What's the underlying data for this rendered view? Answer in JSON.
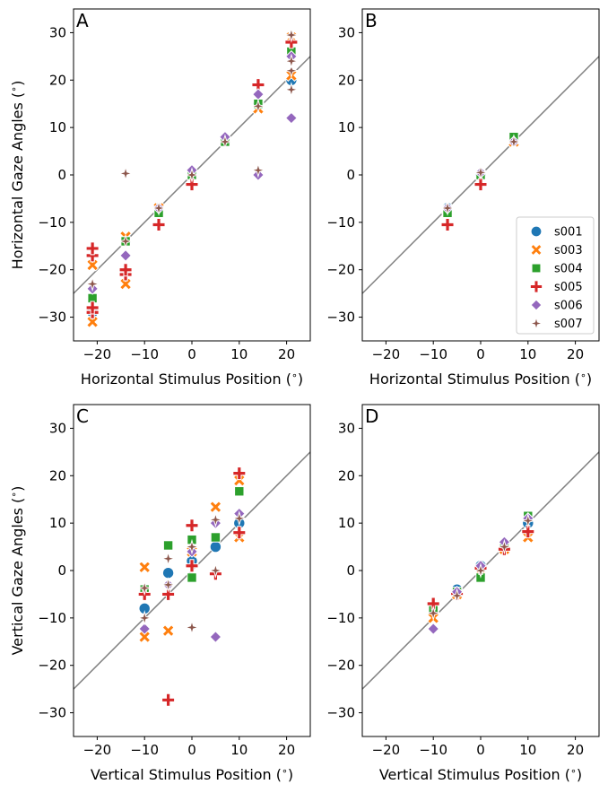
{
  "figure": {
    "ylabel_top": "Horizontal Gaze Angles ($^\\circ$)",
    "ylabel_bottom": "Vertical Gaze Angles ($^\\circ$)"
  },
  "chart_data": [
    {
      "panel": "A",
      "type": "scatter",
      "xlabel": "Horizontal Stimulus Position ($^\\circ$)",
      "ylabel": "Horizontal Gaze Angles ($^\\circ$)",
      "xlim": [
        -25,
        25
      ],
      "ylim": [
        -35,
        35
      ],
      "xticks": [
        -20,
        -10,
        0,
        10,
        20
      ],
      "yticks": [
        -30,
        -20,
        -10,
        0,
        10,
        20,
        30
      ],
      "identity_line": true,
      "legend": "none",
      "series": [
        {
          "name": "s001",
          "points": [
            [
              -21,
              -29
            ],
            [
              -14,
              -14
            ],
            [
              -7,
              -7
            ],
            [
              0,
              0
            ],
            [
              7,
              7
            ],
            [
              14,
              15
            ],
            [
              21,
              20
            ]
          ]
        },
        {
          "name": "s003",
          "points": [
            [
              -21,
              -31
            ],
            [
              -21,
              -19
            ],
            [
              -14,
              -23
            ],
            [
              -14,
              -13
            ],
            [
              -7,
              -7
            ],
            [
              0,
              0
            ],
            [
              7,
              7
            ],
            [
              14,
              14
            ],
            [
              21,
              21
            ],
            [
              21,
              29
            ]
          ]
        },
        {
          "name": "s004",
          "points": [
            [
              -21,
              -26
            ],
            [
              -14,
              -14
            ],
            [
              -7,
              -8
            ],
            [
              0,
              0
            ],
            [
              7,
              7
            ],
            [
              14,
              15
            ],
            [
              21,
              26
            ]
          ]
        },
        {
          "name": "s005",
          "points": [
            [
              -21,
              -29
            ],
            [
              -21,
              -28
            ],
            [
              -21,
              -17
            ],
            [
              -21,
              -15.5
            ],
            [
              -14,
              -21
            ],
            [
              -14,
              -20
            ],
            [
              -7,
              -10.5
            ],
            [
              0,
              -2
            ],
            [
              14,
              19
            ],
            [
              21,
              28
            ]
          ]
        },
        {
          "name": "s006",
          "points": [
            [
              -21,
              -24
            ],
            [
              -14,
              -17
            ],
            [
              -7,
              -7
            ],
            [
              0,
              1
            ],
            [
              7,
              8
            ],
            [
              14,
              17
            ],
            [
              14,
              0
            ],
            [
              21,
              12
            ],
            [
              21,
              25
            ]
          ]
        },
        {
          "name": "s007",
          "points": [
            [
              -21,
              -23
            ],
            [
              -14,
              0.3
            ],
            [
              -14,
              -14
            ],
            [
              -7,
              -7
            ],
            [
              0,
              0
            ],
            [
              7,
              7
            ],
            [
              14,
              14.5
            ],
            [
              14,
              1
            ],
            [
              21,
              18
            ],
            [
              21,
              22
            ],
            [
              21,
              24
            ],
            [
              21,
              29.5
            ]
          ]
        }
      ]
    },
    {
      "panel": "B",
      "type": "scatter",
      "xlabel": "Horizontal Stimulus Position ($^\\circ$)",
      "ylabel": "",
      "xlim": [
        -25,
        25
      ],
      "ylim": [
        -35,
        35
      ],
      "xticks": [
        -20,
        -10,
        0,
        10,
        20
      ],
      "yticks": [
        -30,
        -20,
        -10,
        0,
        10,
        20,
        30
      ],
      "identity_line": true,
      "legend": "lower-right",
      "series": [
        {
          "name": "s001",
          "points": [
            [
              -7,
              -7
            ],
            [
              0,
              0
            ],
            [
              7,
              7.5
            ]
          ]
        },
        {
          "name": "s003",
          "points": [
            [
              -7,
              -7.5
            ],
            [
              0,
              0
            ],
            [
              7,
              7
            ]
          ]
        },
        {
          "name": "s004",
          "points": [
            [
              -7,
              -8
            ],
            [
              0,
              0
            ],
            [
              7,
              8
            ]
          ]
        },
        {
          "name": "s005",
          "points": [
            [
              -7,
              -10.5
            ],
            [
              0,
              -2
            ]
          ]
        },
        {
          "name": "s006",
          "points": [
            [
              -7,
              -7
            ],
            [
              0,
              0.5
            ],
            [
              7,
              7
            ]
          ]
        },
        {
          "name": "s007",
          "points": [
            [
              -7,
              -7
            ],
            [
              0,
              0.5
            ],
            [
              7,
              7
            ]
          ]
        }
      ]
    },
    {
      "panel": "C",
      "type": "scatter",
      "xlabel": "Vertical Stimulus Position ($^\\circ$)",
      "ylabel": "Vertical Gaze Angles ($^\\circ$)",
      "xlim": [
        -25,
        25
      ],
      "ylim": [
        -35,
        35
      ],
      "xticks": [
        -20,
        -10,
        0,
        10,
        20
      ],
      "yticks": [
        -30,
        -20,
        -10,
        0,
        10,
        20,
        30
      ],
      "identity_line": true,
      "legend": "none",
      "series": [
        {
          "name": "s001",
          "points": [
            [
              -10,
              -8
            ],
            [
              -5,
              -0.5
            ],
            [
              0,
              2
            ],
            [
              5,
              5
            ],
            [
              10,
              10
            ]
          ]
        },
        {
          "name": "s003",
          "points": [
            [
              -10,
              0.7
            ],
            [
              -10,
              -14
            ],
            [
              -5,
              -12.7
            ],
            [
              0,
              4
            ],
            [
              5,
              13.4
            ],
            [
              10,
              19
            ],
            [
              10,
              7
            ]
          ]
        },
        {
          "name": "s004",
          "points": [
            [
              -10,
              -4
            ],
            [
              -5,
              5.3
            ],
            [
              0,
              6.5
            ],
            [
              0,
              -1.5
            ],
            [
              5,
              7
            ],
            [
              10,
              16.7
            ]
          ]
        },
        {
          "name": "s005",
          "points": [
            [
              -10,
              -5
            ],
            [
              -5,
              -27.3
            ],
            [
              -5,
              -5
            ],
            [
              0,
              9.5
            ],
            [
              0,
              1
            ],
            [
              5,
              -0.7
            ],
            [
              10,
              20.5
            ],
            [
              10,
              8
            ]
          ]
        },
        {
          "name": "s006",
          "points": [
            [
              -10,
              -12.3
            ],
            [
              -5,
              -3
            ],
            [
              0,
              4
            ],
            [
              5,
              -14
            ],
            [
              5,
              10
            ],
            [
              10,
              12
            ]
          ]
        },
        {
          "name": "s007",
          "points": [
            [
              -10,
              -3.7
            ],
            [
              -10,
              -10
            ],
            [
              -5,
              2.5
            ],
            [
              -5,
              -3
            ],
            [
              0,
              -12
            ],
            [
              0,
              5
            ],
            [
              5,
              10.7
            ],
            [
              5,
              0
            ],
            [
              10,
              11
            ]
          ]
        }
      ]
    },
    {
      "panel": "D",
      "type": "scatter",
      "xlabel": "Vertical Stimulus Position ($^\\circ$)",
      "ylabel": "",
      "xlim": [
        -25,
        25
      ],
      "ylim": [
        -35,
        35
      ],
      "xticks": [
        -20,
        -10,
        0,
        10,
        20
      ],
      "yticks": [
        -30,
        -20,
        -10,
        0,
        10,
        20,
        30
      ],
      "identity_line": true,
      "legend": "none",
      "series": [
        {
          "name": "s001",
          "points": [
            [
              -10,
              -9
            ],
            [
              -5,
              -4
            ],
            [
              0,
              1
            ],
            [
              5,
              5
            ],
            [
              10,
              10
            ]
          ]
        },
        {
          "name": "s003",
          "points": [
            [
              -10,
              -10
            ],
            [
              -5,
              -5
            ],
            [
              0,
              0
            ],
            [
              5,
              4.5
            ],
            [
              10,
              7
            ]
          ]
        },
        {
          "name": "s004",
          "points": [
            [
              -10,
              -8
            ],
            [
              -5,
              -4.5
            ],
            [
              0,
              -1.5
            ],
            [
              5,
              5.5
            ],
            [
              10,
              11.5
            ]
          ]
        },
        {
          "name": "s005",
          "points": [
            [
              -10,
              -7
            ],
            [
              -5,
              -5
            ],
            [
              0,
              0.5
            ],
            [
              5,
              4.5
            ],
            [
              10,
              8.2
            ]
          ]
        },
        {
          "name": "s006",
          "points": [
            [
              -10,
              -12.3
            ],
            [
              -5,
              -4.5
            ],
            [
              0,
              1
            ],
            [
              5,
              6
            ],
            [
              10,
              11
            ]
          ]
        },
        {
          "name": "s007",
          "points": [
            [
              -10,
              -9
            ],
            [
              -5,
              -5.3
            ],
            [
              0,
              0
            ],
            [
              5,
              5
            ],
            [
              10,
              10.5
            ]
          ]
        }
      ]
    }
  ],
  "legend": {
    "entries": [
      {
        "name": "s001",
        "marker": "circle",
        "color": "#1f77b4"
      },
      {
        "name": "s003",
        "marker": "x",
        "color": "#ff7f0e"
      },
      {
        "name": "s004",
        "marker": "square",
        "color": "#2ca02c"
      },
      {
        "name": "s005",
        "marker": "plus",
        "color": "#d62728"
      },
      {
        "name": "s006",
        "marker": "diamond",
        "color": "#9467bd"
      },
      {
        "name": "s007",
        "marker": "star",
        "color": "#8c564b"
      }
    ]
  },
  "colors": {
    "identity_line": "#808080",
    "marker_edge": "#ffffff"
  }
}
